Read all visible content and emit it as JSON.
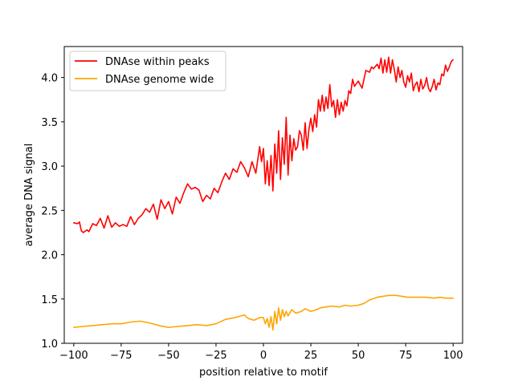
{
  "chart_data": {
    "type": "line",
    "xlabel": "position relative to motif",
    "ylabel": "average DNA signal",
    "xlim": [
      -105,
      105
    ],
    "ylim": [
      1.0,
      4.35
    ],
    "xticks": [
      -100,
      -75,
      -50,
      -25,
      0,
      25,
      50,
      75,
      100
    ],
    "xtick_labels": [
      "−100",
      "−75",
      "−50",
      "−25",
      "0",
      "25",
      "50",
      "75",
      "100"
    ],
    "yticks": [
      1.0,
      1.5,
      2.0,
      2.5,
      3.0,
      3.5,
      4.0
    ],
    "ytick_labels": [
      "1.0",
      "1.5",
      "2.0",
      "2.5",
      "3.0",
      "3.5",
      "4.0"
    ],
    "grid": false,
    "legend_position": "top-left",
    "series": [
      {
        "name": "DNAse within peaks",
        "color": "#ff0000",
        "points": [
          [
            -100,
            2.36
          ],
          [
            -98,
            2.35
          ],
          [
            -97,
            2.37
          ],
          [
            -96,
            2.27
          ],
          [
            -95,
            2.25
          ],
          [
            -93,
            2.28
          ],
          [
            -92,
            2.26
          ],
          [
            -90,
            2.35
          ],
          [
            -88,
            2.33
          ],
          [
            -86,
            2.41
          ],
          [
            -84,
            2.3
          ],
          [
            -82,
            2.44
          ],
          [
            -80,
            2.31
          ],
          [
            -78,
            2.36
          ],
          [
            -76,
            2.32
          ],
          [
            -74,
            2.34
          ],
          [
            -72,
            2.32
          ],
          [
            -70,
            2.43
          ],
          [
            -68,
            2.34
          ],
          [
            -66,
            2.41
          ],
          [
            -64,
            2.45
          ],
          [
            -62,
            2.52
          ],
          [
            -60,
            2.48
          ],
          [
            -58,
            2.57
          ],
          [
            -56,
            2.4
          ],
          [
            -54,
            2.62
          ],
          [
            -52,
            2.52
          ],
          [
            -50,
            2.6
          ],
          [
            -48,
            2.46
          ],
          [
            -46,
            2.65
          ],
          [
            -44,
            2.58
          ],
          [
            -42,
            2.7
          ],
          [
            -40,
            2.8
          ],
          [
            -38,
            2.74
          ],
          [
            -36,
            2.76
          ],
          [
            -34,
            2.73
          ],
          [
            -32,
            2.6
          ],
          [
            -30,
            2.67
          ],
          [
            -28,
            2.63
          ],
          [
            -26,
            2.75
          ],
          [
            -24,
            2.7
          ],
          [
            -22,
            2.82
          ],
          [
            -20,
            2.92
          ],
          [
            -18,
            2.85
          ],
          [
            -16,
            2.97
          ],
          [
            -14,
            2.93
          ],
          [
            -12,
            3.05
          ],
          [
            -10,
            2.98
          ],
          [
            -8,
            2.88
          ],
          [
            -6,
            3.05
          ],
          [
            -4,
            2.92
          ],
          [
            -2,
            3.22
          ],
          [
            -1,
            3.05
          ],
          [
            0,
            3.2
          ],
          [
            1,
            2.8
          ],
          [
            2,
            3.06
          ],
          [
            3,
            2.78
          ],
          [
            4,
            3.12
          ],
          [
            5,
            2.72
          ],
          [
            6,
            3.25
          ],
          [
            7,
            2.92
          ],
          [
            8,
            3.4
          ],
          [
            9,
            2.85
          ],
          [
            10,
            3.32
          ],
          [
            11,
            3.02
          ],
          [
            12,
            3.55
          ],
          [
            13,
            2.9
          ],
          [
            14,
            3.35
          ],
          [
            15,
            3.06
          ],
          [
            16,
            3.31
          ],
          [
            17,
            3.18
          ],
          [
            18,
            3.22
          ],
          [
            19,
            3.4
          ],
          [
            20,
            3.35
          ],
          [
            21,
            3.18
          ],
          [
            22,
            3.49
          ],
          [
            23,
            3.2
          ],
          [
            24,
            3.42
          ],
          [
            25,
            3.54
          ],
          [
            26,
            3.39
          ],
          [
            27,
            3.58
          ],
          [
            28,
            3.44
          ],
          [
            29,
            3.75
          ],
          [
            30,
            3.62
          ],
          [
            31,
            3.8
          ],
          [
            32,
            3.62
          ],
          [
            33,
            3.78
          ],
          [
            34,
            3.65
          ],
          [
            35,
            3.92
          ],
          [
            36,
            3.67
          ],
          [
            37,
            3.74
          ],
          [
            38,
            3.55
          ],
          [
            39,
            3.75
          ],
          [
            40,
            3.58
          ],
          [
            41,
            3.72
          ],
          [
            42,
            3.62
          ],
          [
            43,
            3.74
          ],
          [
            44,
            3.68
          ],
          [
            45,
            3.85
          ],
          [
            46,
            3.82
          ],
          [
            47,
            3.98
          ],
          [
            48,
            3.9
          ],
          [
            50,
            3.96
          ],
          [
            52,
            3.88
          ],
          [
            54,
            4.08
          ],
          [
            56,
            4.06
          ],
          [
            57,
            4.12
          ],
          [
            58,
            4.1
          ],
          [
            60,
            4.15
          ],
          [
            61,
            4.1
          ],
          [
            62,
            4.22
          ],
          [
            63,
            4.05
          ],
          [
            64,
            4.2
          ],
          [
            65,
            4.06
          ],
          [
            66,
            4.23
          ],
          [
            67,
            4.05
          ],
          [
            68,
            4.2
          ],
          [
            69,
            4.09
          ],
          [
            70,
            3.95
          ],
          [
            71,
            4.12
          ],
          [
            72,
            4.0
          ],
          [
            73,
            4.08
          ],
          [
            74,
            3.95
          ],
          [
            75,
            3.89
          ],
          [
            76,
            4.02
          ],
          [
            77,
            3.95
          ],
          [
            78,
            4.05
          ],
          [
            79,
            3.85
          ],
          [
            80,
            3.92
          ],
          [
            81,
            3.95
          ],
          [
            82,
            3.84
          ],
          [
            83,
            3.98
          ],
          [
            84,
            3.87
          ],
          [
            85,
            3.91
          ],
          [
            86,
            4.0
          ],
          [
            87,
            3.88
          ],
          [
            88,
            3.84
          ],
          [
            89,
            3.9
          ],
          [
            90,
            3.98
          ],
          [
            91,
            3.86
          ],
          [
            92,
            3.94
          ],
          [
            93,
            3.92
          ],
          [
            94,
            4.04
          ],
          [
            95,
            4.02
          ],
          [
            96,
            4.14
          ],
          [
            97,
            4.07
          ],
          [
            98,
            4.12
          ],
          [
            99,
            4.18
          ],
          [
            100,
            4.2
          ]
        ]
      },
      {
        "name": "DNAse genome wide",
        "color": "#ffa500",
        "points": [
          [
            -100,
            1.18
          ],
          [
            -95,
            1.19
          ],
          [
            -90,
            1.2
          ],
          [
            -85,
            1.21
          ],
          [
            -80,
            1.22
          ],
          [
            -75,
            1.22
          ],
          [
            -70,
            1.24
          ],
          [
            -65,
            1.25
          ],
          [
            -60,
            1.23
          ],
          [
            -55,
            1.2
          ],
          [
            -50,
            1.18
          ],
          [
            -45,
            1.19
          ],
          [
            -40,
            1.2
          ],
          [
            -35,
            1.21
          ],
          [
            -30,
            1.2
          ],
          [
            -25,
            1.22
          ],
          [
            -20,
            1.27
          ],
          [
            -15,
            1.29
          ],
          [
            -10,
            1.32
          ],
          [
            -8,
            1.28
          ],
          [
            -5,
            1.26
          ],
          [
            -2,
            1.29
          ],
          [
            0,
            1.29
          ],
          [
            1,
            1.22
          ],
          [
            2,
            1.28
          ],
          [
            3,
            1.18
          ],
          [
            4,
            1.3
          ],
          [
            5,
            1.15
          ],
          [
            6,
            1.36
          ],
          [
            7,
            1.22
          ],
          [
            8,
            1.4
          ],
          [
            9,
            1.26
          ],
          [
            10,
            1.38
          ],
          [
            11,
            1.3
          ],
          [
            12,
            1.36
          ],
          [
            13,
            1.31
          ],
          [
            15,
            1.38
          ],
          [
            17,
            1.34
          ],
          [
            20,
            1.36
          ],
          [
            22,
            1.39
          ],
          [
            25,
            1.36
          ],
          [
            28,
            1.38
          ],
          [
            30,
            1.4
          ],
          [
            33,
            1.41
          ],
          [
            36,
            1.42
          ],
          [
            40,
            1.41
          ],
          [
            43,
            1.43
          ],
          [
            46,
            1.42
          ],
          [
            50,
            1.43
          ],
          [
            53,
            1.45
          ],
          [
            56,
            1.49
          ],
          [
            60,
            1.52
          ],
          [
            63,
            1.53
          ],
          [
            66,
            1.54
          ],
          [
            70,
            1.54
          ],
          [
            73,
            1.53
          ],
          [
            76,
            1.52
          ],
          [
            80,
            1.52
          ],
          [
            85,
            1.52
          ],
          [
            90,
            1.51
          ],
          [
            93,
            1.52
          ],
          [
            96,
            1.51
          ],
          [
            100,
            1.51
          ]
        ]
      }
    ]
  }
}
